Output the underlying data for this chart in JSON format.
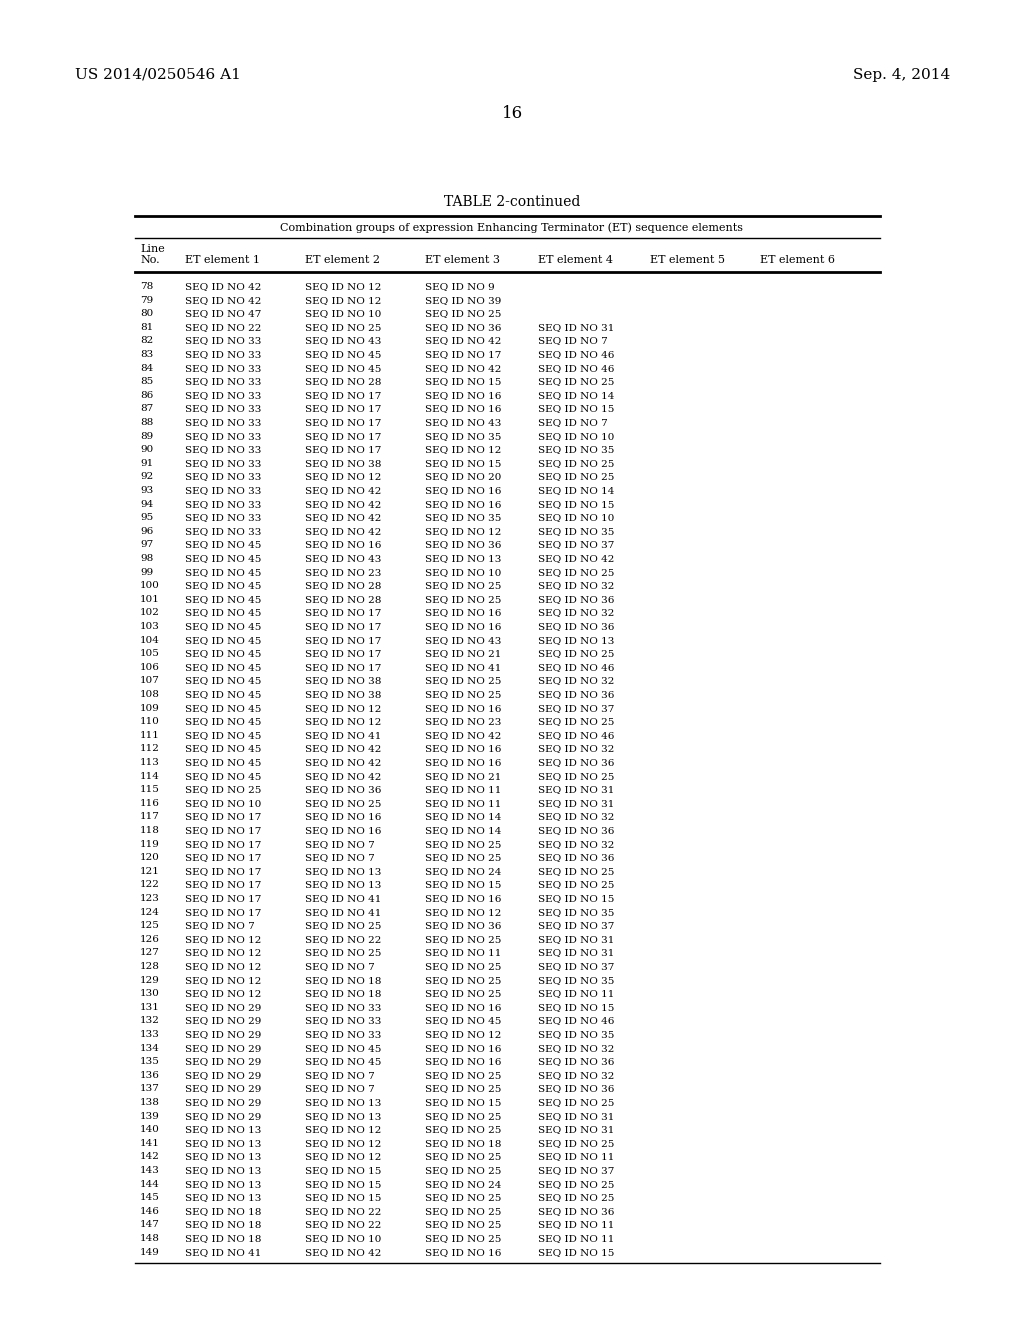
{
  "header_left": "US 2014/0250546 A1",
  "header_right": "Sep. 4, 2014",
  "page_number": "16",
  "table_title": "TABLE 2-continued",
  "table_subtitle": "Combination groups of expression Enhancing Terminator (ET) sequence elements",
  "rows": [
    [
      78,
      "SEQ ID NO 42",
      "SEQ ID NO 12",
      "SEQ ID NO 9",
      "",
      "",
      ""
    ],
    [
      79,
      "SEQ ID NO 42",
      "SEQ ID NO 12",
      "SEQ ID NO 39",
      "",
      "",
      ""
    ],
    [
      80,
      "SEQ ID NO 47",
      "SEQ ID NO 10",
      "SEQ ID NO 25",
      "",
      "",
      ""
    ],
    [
      81,
      "SEQ ID NO 22",
      "SEQ ID NO 25",
      "SEQ ID NO 36",
      "SEQ ID NO 31",
      "",
      ""
    ],
    [
      82,
      "SEQ ID NO 33",
      "SEQ ID NO 43",
      "SEQ ID NO 42",
      "SEQ ID NO 7",
      "",
      ""
    ],
    [
      83,
      "SEQ ID NO 33",
      "SEQ ID NO 45",
      "SEQ ID NO 17",
      "SEQ ID NO 46",
      "",
      ""
    ],
    [
      84,
      "SEQ ID NO 33",
      "SEQ ID NO 45",
      "SEQ ID NO 42",
      "SEQ ID NO 46",
      "",
      ""
    ],
    [
      85,
      "SEQ ID NO 33",
      "SEQ ID NO 28",
      "SEQ ID NO 15",
      "SEQ ID NO 25",
      "",
      ""
    ],
    [
      86,
      "SEQ ID NO 33",
      "SEQ ID NO 17",
      "SEQ ID NO 16",
      "SEQ ID NO 14",
      "",
      ""
    ],
    [
      87,
      "SEQ ID NO 33",
      "SEQ ID NO 17",
      "SEQ ID NO 16",
      "SEQ ID NO 15",
      "",
      ""
    ],
    [
      88,
      "SEQ ID NO 33",
      "SEQ ID NO 17",
      "SEQ ID NO 43",
      "SEQ ID NO 7",
      "",
      ""
    ],
    [
      89,
      "SEQ ID NO 33",
      "SEQ ID NO 17",
      "SEQ ID NO 35",
      "SEQ ID NO 10",
      "",
      ""
    ],
    [
      90,
      "SEQ ID NO 33",
      "SEQ ID NO 17",
      "SEQ ID NO 12",
      "SEQ ID NO 35",
      "",
      ""
    ],
    [
      91,
      "SEQ ID NO 33",
      "SEQ ID NO 38",
      "SEQ ID NO 15",
      "SEQ ID NO 25",
      "",
      ""
    ],
    [
      92,
      "SEQ ID NO 33",
      "SEQ ID NO 12",
      "SEQ ID NO 20",
      "SEQ ID NO 25",
      "",
      ""
    ],
    [
      93,
      "SEQ ID NO 33",
      "SEQ ID NO 42",
      "SEQ ID NO 16",
      "SEQ ID NO 14",
      "",
      ""
    ],
    [
      94,
      "SEQ ID NO 33",
      "SEQ ID NO 42",
      "SEQ ID NO 16",
      "SEQ ID NO 15",
      "",
      ""
    ],
    [
      95,
      "SEQ ID NO 33",
      "SEQ ID NO 42",
      "SEQ ID NO 35",
      "SEQ ID NO 10",
      "",
      ""
    ],
    [
      96,
      "SEQ ID NO 33",
      "SEQ ID NO 42",
      "SEQ ID NO 12",
      "SEQ ID NO 35",
      "",
      ""
    ],
    [
      97,
      "SEQ ID NO 45",
      "SEQ ID NO 16",
      "SEQ ID NO 36",
      "SEQ ID NO 37",
      "",
      ""
    ],
    [
      98,
      "SEQ ID NO 45",
      "SEQ ID NO 43",
      "SEQ ID NO 13",
      "SEQ ID NO 42",
      "",
      ""
    ],
    [
      99,
      "SEQ ID NO 45",
      "SEQ ID NO 23",
      "SEQ ID NO 10",
      "SEQ ID NO 25",
      "",
      ""
    ],
    [
      100,
      "SEQ ID NO 45",
      "SEQ ID NO 28",
      "SEQ ID NO 25",
      "SEQ ID NO 32",
      "",
      ""
    ],
    [
      101,
      "SEQ ID NO 45",
      "SEQ ID NO 28",
      "SEQ ID NO 25",
      "SEQ ID NO 36",
      "",
      ""
    ],
    [
      102,
      "SEQ ID NO 45",
      "SEQ ID NO 17",
      "SEQ ID NO 16",
      "SEQ ID NO 32",
      "",
      ""
    ],
    [
      103,
      "SEQ ID NO 45",
      "SEQ ID NO 17",
      "SEQ ID NO 16",
      "SEQ ID NO 36",
      "",
      ""
    ],
    [
      104,
      "SEQ ID NO 45",
      "SEQ ID NO 17",
      "SEQ ID NO 43",
      "SEQ ID NO 13",
      "",
      ""
    ],
    [
      105,
      "SEQ ID NO 45",
      "SEQ ID NO 17",
      "SEQ ID NO 21",
      "SEQ ID NO 25",
      "",
      ""
    ],
    [
      106,
      "SEQ ID NO 45",
      "SEQ ID NO 17",
      "SEQ ID NO 41",
      "SEQ ID NO 46",
      "",
      ""
    ],
    [
      107,
      "SEQ ID NO 45",
      "SEQ ID NO 38",
      "SEQ ID NO 25",
      "SEQ ID NO 32",
      "",
      ""
    ],
    [
      108,
      "SEQ ID NO 45",
      "SEQ ID NO 38",
      "SEQ ID NO 25",
      "SEQ ID NO 36",
      "",
      ""
    ],
    [
      109,
      "SEQ ID NO 45",
      "SEQ ID NO 12",
      "SEQ ID NO 16",
      "SEQ ID NO 37",
      "",
      ""
    ],
    [
      110,
      "SEQ ID NO 45",
      "SEQ ID NO 12",
      "SEQ ID NO 23",
      "SEQ ID NO 25",
      "",
      ""
    ],
    [
      111,
      "SEQ ID NO 45",
      "SEQ ID NO 41",
      "SEQ ID NO 42",
      "SEQ ID NO 46",
      "",
      ""
    ],
    [
      112,
      "SEQ ID NO 45",
      "SEQ ID NO 42",
      "SEQ ID NO 16",
      "SEQ ID NO 32",
      "",
      ""
    ],
    [
      113,
      "SEQ ID NO 45",
      "SEQ ID NO 42",
      "SEQ ID NO 16",
      "SEQ ID NO 36",
      "",
      ""
    ],
    [
      114,
      "SEQ ID NO 45",
      "SEQ ID NO 42",
      "SEQ ID NO 21",
      "SEQ ID NO 25",
      "",
      ""
    ],
    [
      115,
      "SEQ ID NO 25",
      "SEQ ID NO 36",
      "SEQ ID NO 11",
      "SEQ ID NO 31",
      "",
      ""
    ],
    [
      116,
      "SEQ ID NO 10",
      "SEQ ID NO 25",
      "SEQ ID NO 11",
      "SEQ ID NO 31",
      "",
      ""
    ],
    [
      117,
      "SEQ ID NO 17",
      "SEQ ID NO 16",
      "SEQ ID NO 14",
      "SEQ ID NO 32",
      "",
      ""
    ],
    [
      118,
      "SEQ ID NO 17",
      "SEQ ID NO 16",
      "SEQ ID NO 14",
      "SEQ ID NO 36",
      "",
      ""
    ],
    [
      119,
      "SEQ ID NO 17",
      "SEQ ID NO 7",
      "SEQ ID NO 25",
      "SEQ ID NO 32",
      "",
      ""
    ],
    [
      120,
      "SEQ ID NO 17",
      "SEQ ID NO 7",
      "SEQ ID NO 25",
      "SEQ ID NO 36",
      "",
      ""
    ],
    [
      121,
      "SEQ ID NO 17",
      "SEQ ID NO 13",
      "SEQ ID NO 24",
      "SEQ ID NO 25",
      "",
      ""
    ],
    [
      122,
      "SEQ ID NO 17",
      "SEQ ID NO 13",
      "SEQ ID NO 15",
      "SEQ ID NO 25",
      "",
      ""
    ],
    [
      123,
      "SEQ ID NO 17",
      "SEQ ID NO 41",
      "SEQ ID NO 16",
      "SEQ ID NO 15",
      "",
      ""
    ],
    [
      124,
      "SEQ ID NO 17",
      "SEQ ID NO 41",
      "SEQ ID NO 12",
      "SEQ ID NO 35",
      "",
      ""
    ],
    [
      125,
      "SEQ ID NO 7",
      "SEQ ID NO 25",
      "SEQ ID NO 36",
      "SEQ ID NO 37",
      "",
      ""
    ],
    [
      126,
      "SEQ ID NO 12",
      "SEQ ID NO 22",
      "SEQ ID NO 25",
      "SEQ ID NO 31",
      "",
      ""
    ],
    [
      127,
      "SEQ ID NO 12",
      "SEQ ID NO 25",
      "SEQ ID NO 11",
      "SEQ ID NO 31",
      "",
      ""
    ],
    [
      128,
      "SEQ ID NO 12",
      "SEQ ID NO 7",
      "SEQ ID NO 25",
      "SEQ ID NO 37",
      "",
      ""
    ],
    [
      129,
      "SEQ ID NO 12",
      "SEQ ID NO 18",
      "SEQ ID NO 25",
      "SEQ ID NO 35",
      "",
      ""
    ],
    [
      130,
      "SEQ ID NO 12",
      "SEQ ID NO 18",
      "SEQ ID NO 25",
      "SEQ ID NO 11",
      "",
      ""
    ],
    [
      131,
      "SEQ ID NO 29",
      "SEQ ID NO 33",
      "SEQ ID NO 16",
      "SEQ ID NO 15",
      "",
      ""
    ],
    [
      132,
      "SEQ ID NO 29",
      "SEQ ID NO 33",
      "SEQ ID NO 45",
      "SEQ ID NO 46",
      "",
      ""
    ],
    [
      133,
      "SEQ ID NO 29",
      "SEQ ID NO 33",
      "SEQ ID NO 12",
      "SEQ ID NO 35",
      "",
      ""
    ],
    [
      134,
      "SEQ ID NO 29",
      "SEQ ID NO 45",
      "SEQ ID NO 16",
      "SEQ ID NO 32",
      "",
      ""
    ],
    [
      135,
      "SEQ ID NO 29",
      "SEQ ID NO 45",
      "SEQ ID NO 16",
      "SEQ ID NO 36",
      "",
      ""
    ],
    [
      136,
      "SEQ ID NO 29",
      "SEQ ID NO 7",
      "SEQ ID NO 25",
      "SEQ ID NO 32",
      "",
      ""
    ],
    [
      137,
      "SEQ ID NO 29",
      "SEQ ID NO 7",
      "SEQ ID NO 25",
      "SEQ ID NO 36",
      "",
      ""
    ],
    [
      138,
      "SEQ ID NO 29",
      "SEQ ID NO 13",
      "SEQ ID NO 15",
      "SEQ ID NO 25",
      "",
      ""
    ],
    [
      139,
      "SEQ ID NO 29",
      "SEQ ID NO 13",
      "SEQ ID NO 25",
      "SEQ ID NO 31",
      "",
      ""
    ],
    [
      140,
      "SEQ ID NO 13",
      "SEQ ID NO 12",
      "SEQ ID NO 25",
      "SEQ ID NO 31",
      "",
      ""
    ],
    [
      141,
      "SEQ ID NO 13",
      "SEQ ID NO 12",
      "SEQ ID NO 18",
      "SEQ ID NO 25",
      "",
      ""
    ],
    [
      142,
      "SEQ ID NO 13",
      "SEQ ID NO 12",
      "SEQ ID NO 25",
      "SEQ ID NO 11",
      "",
      ""
    ],
    [
      143,
      "SEQ ID NO 13",
      "SEQ ID NO 15",
      "SEQ ID NO 25",
      "SEQ ID NO 37",
      "",
      ""
    ],
    [
      144,
      "SEQ ID NO 13",
      "SEQ ID NO 15",
      "SEQ ID NO 24",
      "SEQ ID NO 25",
      "",
      ""
    ],
    [
      145,
      "SEQ ID NO 13",
      "SEQ ID NO 15",
      "SEQ ID NO 25",
      "SEQ ID NO 25",
      "",
      ""
    ],
    [
      146,
      "SEQ ID NO 18",
      "SEQ ID NO 22",
      "SEQ ID NO 25",
      "SEQ ID NO 36",
      "",
      ""
    ],
    [
      147,
      "SEQ ID NO 18",
      "SEQ ID NO 22",
      "SEQ ID NO 25",
      "SEQ ID NO 11",
      "",
      ""
    ],
    [
      148,
      "SEQ ID NO 18",
      "SEQ ID NO 10",
      "SEQ ID NO 25",
      "SEQ ID NO 11",
      "",
      ""
    ],
    [
      149,
      "SEQ ID NO 41",
      "SEQ ID NO 42",
      "SEQ ID NO 16",
      "SEQ ID NO 15",
      "",
      ""
    ]
  ]
}
